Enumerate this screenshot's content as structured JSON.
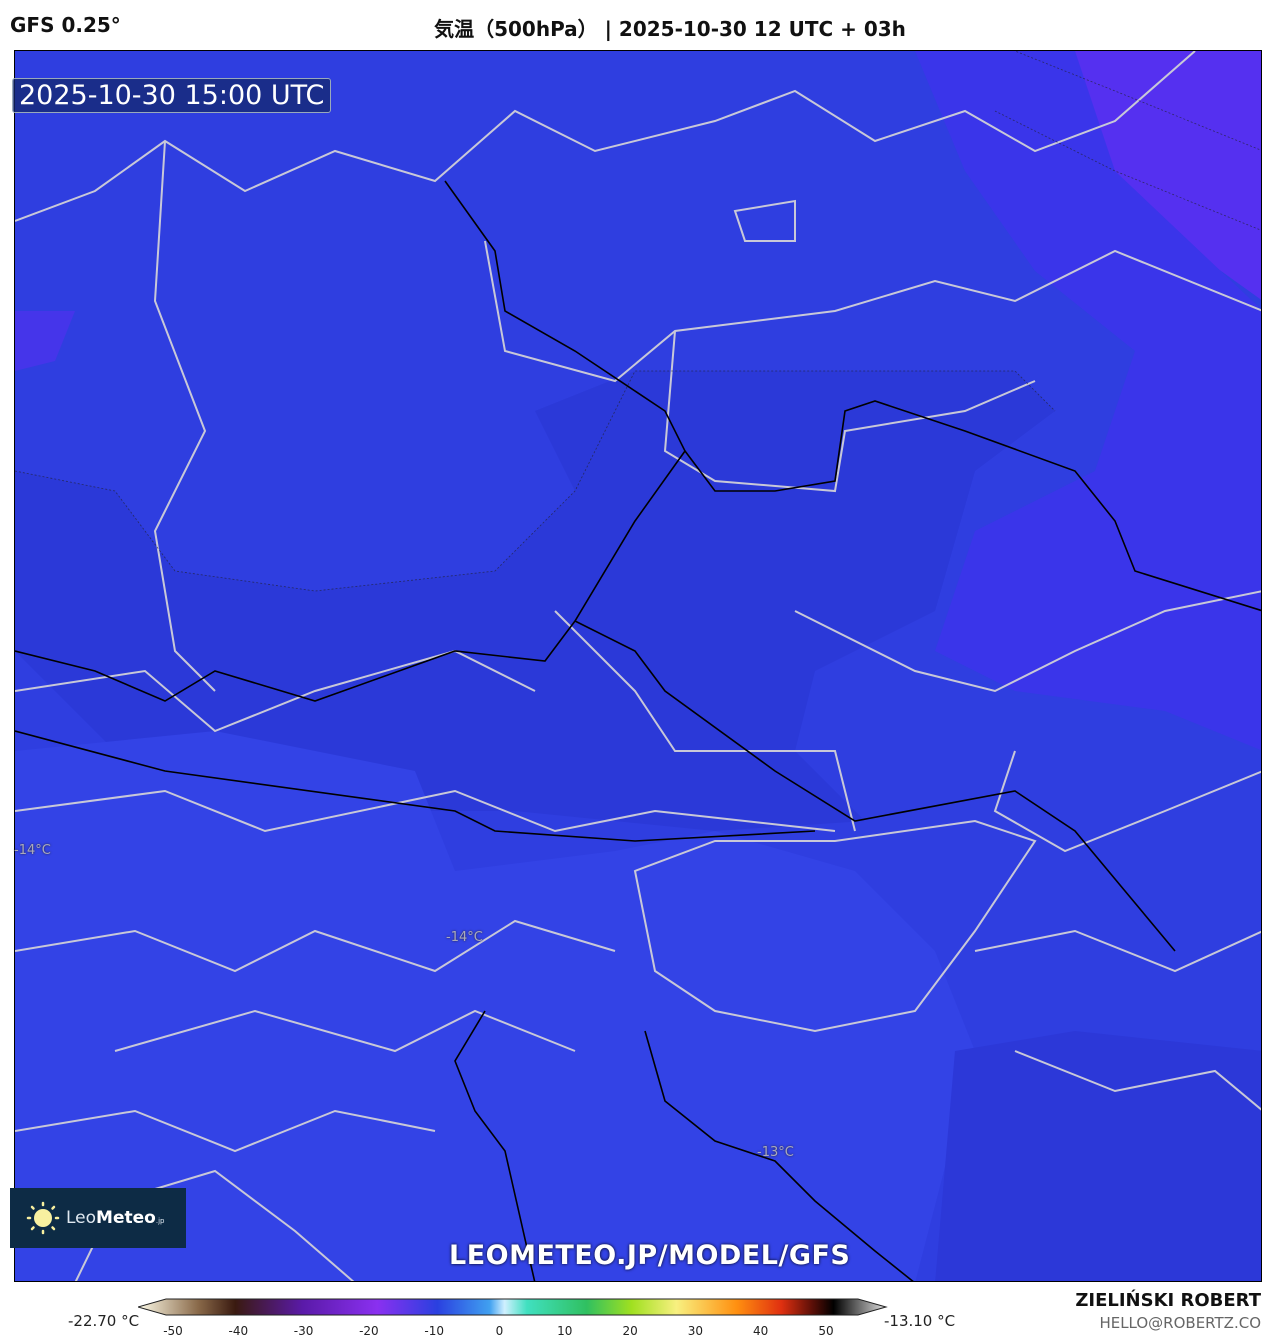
{
  "header": {
    "model": "GFS 0.25°",
    "title": "気温（500hPa） | 2025-10-30 12 UTC + 03h"
  },
  "map": {
    "valid_time": "2025-10-30 15:00 UTC",
    "watermark": "LEOMETEO.JP/MODEL/GFS",
    "contour_labels": [
      "-14°C",
      "-14°C",
      "-13°C"
    ],
    "colors": {
      "base": "#2f3ee0",
      "dark": "#2a38d6",
      "light": "#3446ea",
      "violet": "#5a30f0",
      "border": "#c8c8d8",
      "coast": "#000000"
    }
  },
  "logo": {
    "name": "LeoMeteo",
    "prefix": "Leo",
    "bold": "Meteo",
    "suffix": ".jp",
    "icon": "sun-icon"
  },
  "colorbar": {
    "min_label": "-22.70 °C",
    "max_label": "-13.10 °C",
    "ticks": [
      "-50",
      "-40",
      "-30",
      "-20",
      "-10",
      "0",
      "10",
      "20",
      "30",
      "40",
      "50"
    ],
    "range": [
      -55,
      55
    ]
  },
  "credit": {
    "author": "ZIELIŃSKI ROBERT",
    "email": "HELLO@ROBERTZ.CO"
  }
}
